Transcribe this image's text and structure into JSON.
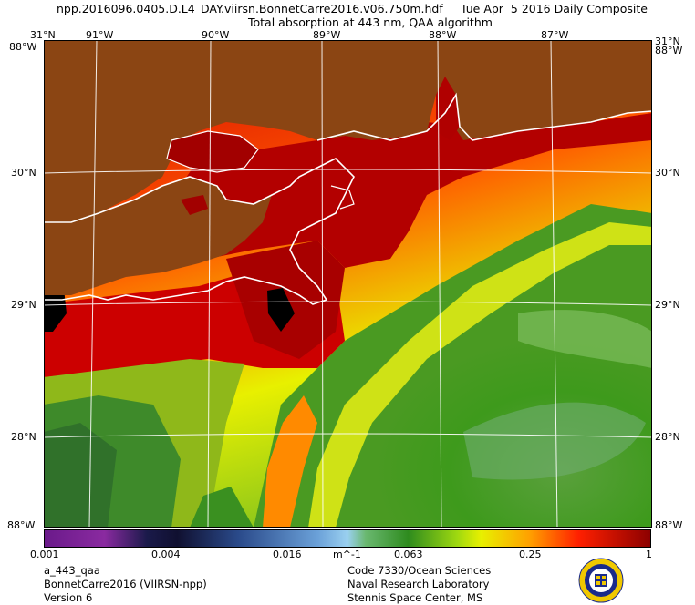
{
  "header": {
    "filename": "npp.2016096.0405.D.L4_DAY.viirsn.BonnetCarre2016.v06.750m.hdf",
    "date": "Tue Apr  5 2016 Daily Composite",
    "product": "Total absorption at 443 nm, QAA algorithm"
  },
  "axes": {
    "top_lon": [
      "31°N",
      "91°W",
      "90°W",
      "89°W",
      "88°W",
      "87°W",
      "31°N"
    ],
    "top_lon_right2": "88°W",
    "left_corner_top": "88°W",
    "lat_left": [
      "30°N",
      "29°N",
      "28°N"
    ],
    "lat_right": [
      "30°N",
      "29°N",
      "28°N"
    ],
    "bottom_corner_left": "88°W",
    "bottom_corner_right": "88°W"
  },
  "colorbar": {
    "ticks": [
      "0.001",
      "0.004",
      "0.016",
      "0.063",
      "0.25",
      "1"
    ],
    "unit": "m^-1",
    "values": [
      0.001,
      0.004,
      0.016,
      0.063,
      0.25,
      1
    ],
    "scale": "log"
  },
  "footer": {
    "left": [
      "a_443_qaa",
      "BonnetCarre2016 (VIIRSN-npp)",
      "Version 6"
    ],
    "right": [
      "Code 7330/Ocean Sciences",
      "Naval Research Laboratory",
      "Stennis Space Center, MS"
    ]
  },
  "colors": {
    "land": "#8b4513",
    "high": "#8b0000",
    "mid": "#e8f000",
    "low": "#2e8b1e",
    "grid": "#ffffff"
  },
  "logo": {
    "name": "naval-research-laboratory-seal"
  }
}
